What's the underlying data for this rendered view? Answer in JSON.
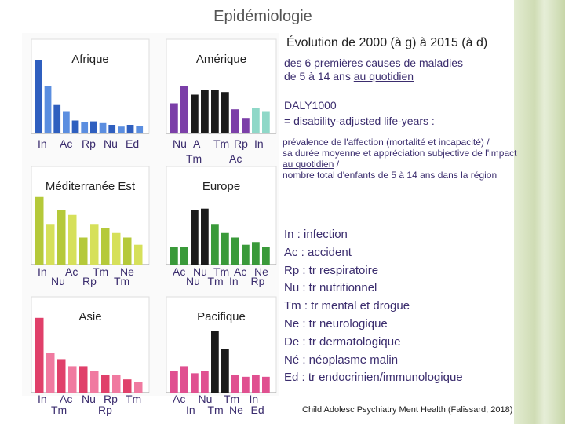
{
  "title": "Epidémiologie",
  "heading": "Évolution de 2000 (à g) à 2015 (à d)",
  "heading_lines": [
    "des 6 premières causes de maladies",
    "de 5 à 14 ans",
    "au quotidien"
  ],
  "daly": [
    "DALY1000",
    "= disability-adjusted life-years :"
  ],
  "daly_definition": [
    "prévalence de l'affection  (mortalité et incapacité) /",
    "sa durée moyenne et appréciation subjective de l'impact",
    "au quotidien",
    "/",
    "nombre total d'enfants de 5 à 14 ans dans la région"
  ],
  "legend": [
    "In : infection",
    "Ac : accident",
    "Rp  : tr respiratoire",
    "Nu  : tr nutritionnel",
    "Tm  : tr mental et drogue",
    "Ne : tr neurologique",
    "De : tr dermatologique",
    "Né : néoplasme malin",
    "Ed : tr endocrinien/immunologique"
  ],
  "citation": "Child Adolesc Psychiatry Ment Health (Falissard, 2018)",
  "panels": [
    {
      "region": "Afrique",
      "labels": [
        "In",
        "Ac",
        "Rp",
        "Nu",
        "Ed"
      ],
      "labels2": [],
      "values": [
        0.85,
        0.55,
        0.33,
        0.25,
        0.15,
        0.13,
        0.14,
        0.12,
        0.1,
        0.08,
        0.1,
        0.09
      ],
      "colors": [
        "#2f5fbf",
        "#5b8ee0",
        "#2f5fbf",
        "#5b8ee0",
        "#2f5fbf",
        "#5b8ee0",
        "#2f5fbf",
        "#5b8ee0",
        "#2f5fbf",
        "#5b8ee0",
        "#2f5fbf",
        "#5b8ee0"
      ]
    },
    {
      "region": "Amérique",
      "labels": [
        "Nu",
        "A",
        "Tm",
        "Rp",
        "In"
      ],
      "labels2": [
        "Tm",
        "Ac"
      ],
      "values": [
        0.35,
        0.55,
        0.45,
        0.5,
        0.5,
        0.48,
        0.28,
        0.18,
        0.3,
        0.25
      ],
      "colors": [
        "#7b3fa8",
        "#7b3fa8",
        "#1a1a1a",
        "#1a1a1a",
        "#1a1a1a",
        "#1a1a1a",
        "#7b3fa8",
        "#7b3fa8",
        "#8fd8c8",
        "#8fd8c8"
      ]
    },
    {
      "region": "Méditerranée Est",
      "labels": [
        "In",
        "Ac",
        "Tm",
        "Ne"
      ],
      "labels2": [
        "Nu",
        "Rp",
        "Tm"
      ],
      "values": [
        0.75,
        0.45,
        0.6,
        0.55,
        0.3,
        0.45,
        0.4,
        0.35,
        0.3,
        0.22
      ],
      "colors": [
        "#b5c93a",
        "#d6e05a",
        "#b5c93a",
        "#d6e05a",
        "#b5c93a",
        "#d6e05a",
        "#b5c93a",
        "#d6e05a",
        "#b5c93a",
        "#d6e05a"
      ]
    },
    {
      "region": "Europe",
      "labels": [
        "Ac",
        "Nu",
        "Tm",
        "Ac",
        "Ne"
      ],
      "labels2": [
        "Nu",
        "Tm",
        "In",
        "Rp"
      ],
      "values": [
        0.2,
        0.2,
        0.6,
        0.62,
        0.45,
        0.35,
        0.3,
        0.22,
        0.25,
        0.2
      ],
      "colors": [
        "#3a9a3a",
        "#3a9a3a",
        "#1a1a1a",
        "#1a1a1a",
        "#3a9a3a",
        "#3a9a3a",
        "#3a9a3a",
        "#3a9a3a",
        "#3a9a3a",
        "#3a9a3a"
      ]
    },
    {
      "region": "Asie",
      "labels": [
        "In",
        "Ac",
        "Nu",
        "Rp",
        "Tm"
      ],
      "labels2": [
        "Tm",
        "Rp"
      ],
      "values": [
        0.85,
        0.45,
        0.38,
        0.3,
        0.3,
        0.25,
        0.2,
        0.2,
        0.15,
        0.12
      ],
      "colors": [
        "#e0406a",
        "#f07aa0",
        "#e0406a",
        "#f07aa0",
        "#e0406a",
        "#f07aa0",
        "#e0406a",
        "#f07aa0",
        "#e0406a",
        "#f07aa0"
      ]
    },
    {
      "region": "Pacifique",
      "labels": [
        "Ac",
        "Nu",
        "Tm",
        "In"
      ],
      "labels2": [
        "In",
        "Tm",
        "Ne",
        "Ed"
      ],
      "values": [
        0.25,
        0.3,
        0.22,
        0.25,
        0.7,
        0.5,
        0.2,
        0.18,
        0.2,
        0.18
      ],
      "colors": [
        "#e05090",
        "#e05090",
        "#e05090",
        "#e05090",
        "#1a1a1a",
        "#1a1a1a",
        "#e05090",
        "#e05090",
        "#e05090",
        "#e05090"
      ]
    }
  ]
}
